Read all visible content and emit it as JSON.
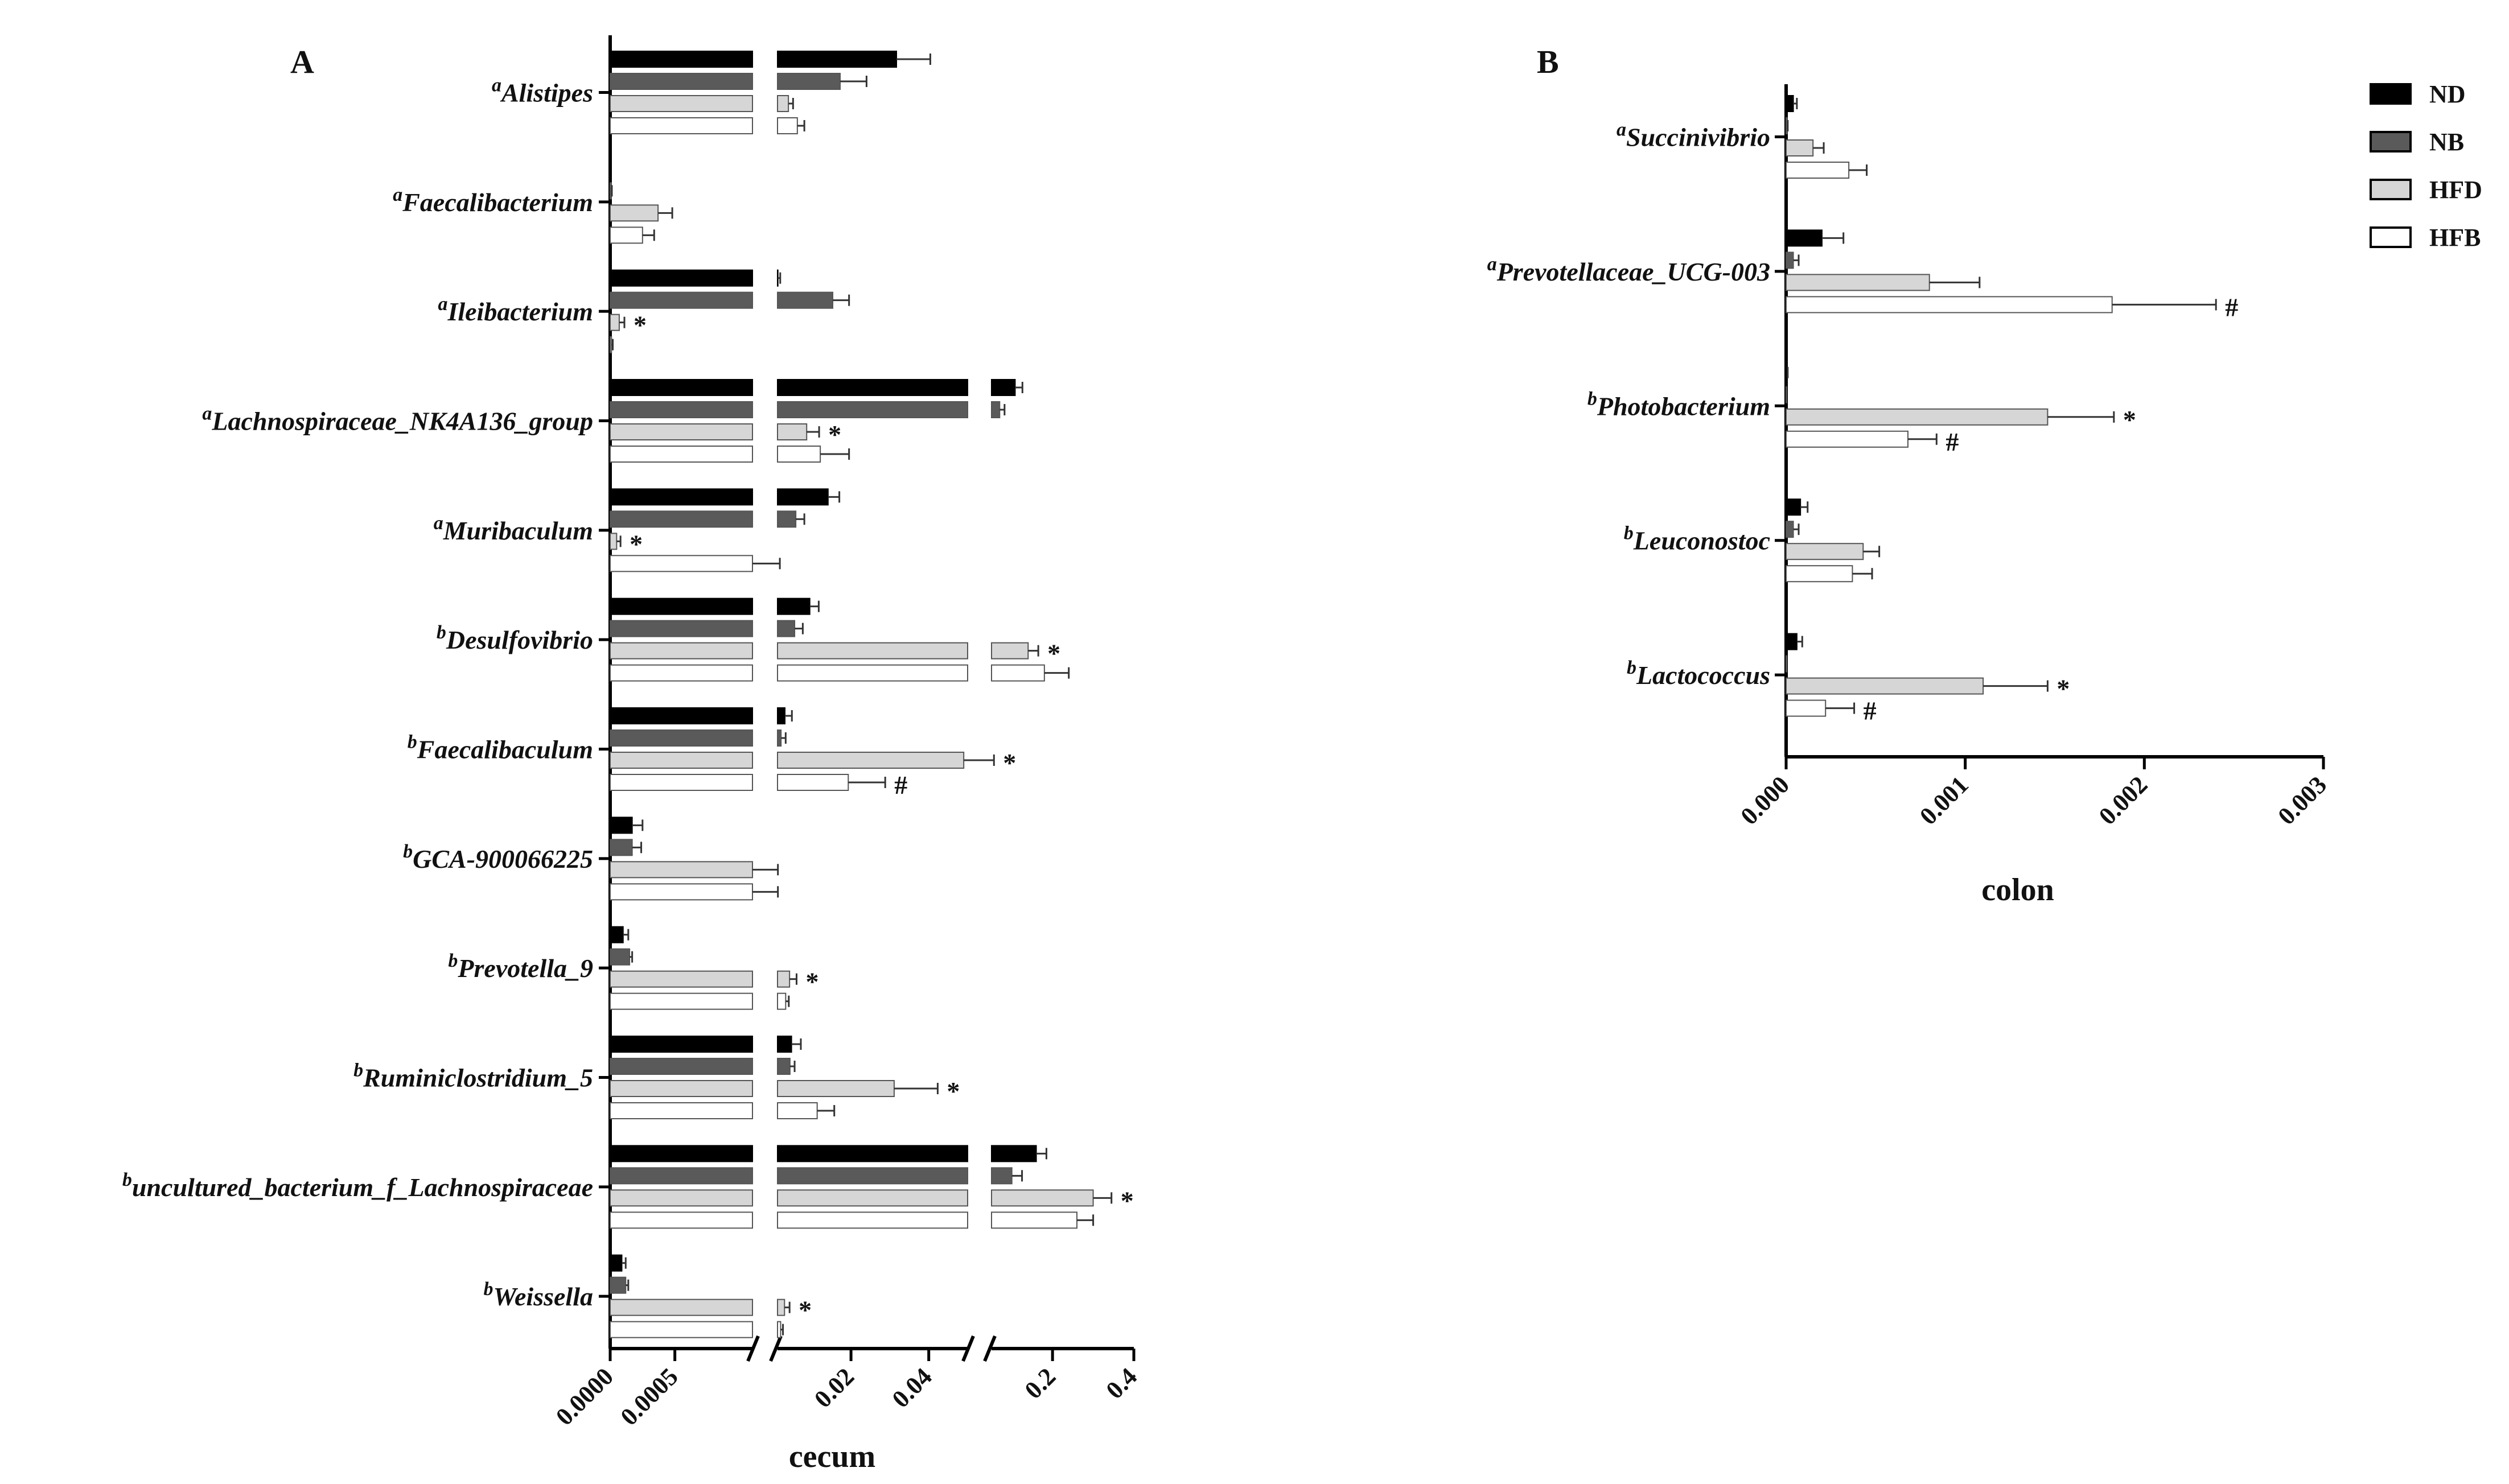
{
  "legend": [
    {
      "key": "ND",
      "label": "ND",
      "fill": "#000000"
    },
    {
      "key": "NB",
      "label": "NB",
      "fill": "#5a5a5a"
    },
    {
      "key": "HFD",
      "label": "HFD",
      "fill": "#d6d6d6"
    },
    {
      "key": "HFB",
      "label": "HFB",
      "fill": "#ffffff"
    }
  ],
  "chart_data": [
    {
      "panel": "A",
      "type": "bar",
      "orientation": "horizontal",
      "xlabel": "cecum",
      "x_axis_segments": [
        {
          "range": [
            0,
            0.0011
          ],
          "ticks": [
            {
              "value": 0,
              "label": "0.0000"
            },
            {
              "value": 0.0005,
              "label": "0.0005"
            }
          ]
        },
        {
          "range": [
            0.0011,
            0.05
          ],
          "ticks": [
            {
              "value": 0.02,
              "label": "0.02"
            },
            {
              "value": 0.04,
              "label": "0.04"
            }
          ]
        },
        {
          "range": [
            0.05,
            0.4
          ],
          "ticks": [
            {
              "value": 0.2,
              "label": "0.2"
            },
            {
              "value": 0.4,
              "label": "0.4"
            }
          ]
        }
      ],
      "series_names": [
        "ND",
        "NB",
        "HFD",
        "HFB"
      ],
      "categories": [
        {
          "prefix": "a",
          "name": "Alistipes",
          "values": [
            0.0317,
            0.0172,
            0.0039,
            0.0062
          ],
          "errors": [
            0.0087,
            0.0068,
            0.0012,
            0.0018
          ],
          "marks": [
            "",
            "",
            "",
            ""
          ]
        },
        {
          "prefix": "a",
          "name": "Faecalibacterium",
          "values": [
            5e-06,
            8e-06,
            0.00037,
            0.00025
          ],
          "errors": [
            4e-06,
            5e-06,
            0.00011,
            9e-05
          ],
          "marks": [
            "",
            "",
            "",
            ""
          ]
        },
        {
          "prefix": "a",
          "name": "Ileibacterium",
          "values": [
            0.0012,
            0.0153,
            7e-05,
            1e-05
          ],
          "errors": [
            0.0006,
            0.0042,
            4e-05,
            1e-05
          ],
          "marks": [
            "",
            "",
            "*",
            ""
          ]
        },
        {
          "prefix": "a",
          "name": "Lachnospiraceae_NK4A136_group",
          "values": [
            0.108,
            0.07,
            0.0086,
            0.0121
          ],
          "errors": [
            0.018,
            0.012,
            0.0032,
            0.0074
          ],
          "marks": [
            "",
            "",
            "*",
            ""
          ]
        },
        {
          "prefix": "a",
          "name": "Muribaculum",
          "values": [
            0.0141,
            0.0058,
            5e-05,
            0.0011
          ],
          "errors": [
            0.0029,
            0.0022,
            3e-05,
            0.0006
          ],
          "marks": [
            "",
            "",
            "*",
            ""
          ]
        },
        {
          "prefix": "b",
          "name": "Desulfovibrio",
          "values": [
            0.0094,
            0.0055,
            0.14,
            0.18
          ],
          "errors": [
            0.0023,
            0.0021,
            0.025,
            0.06
          ],
          "marks": [
            "",
            "",
            "*",
            ""
          ]
        },
        {
          "prefix": "b",
          "name": "Faecalibaculum",
          "values": [
            0.003,
            0.002,
            0.049,
            0.0193
          ],
          "errors": [
            0.0018,
            0.0012,
            0.007,
            0.0095
          ],
          "marks": [
            "",
            "",
            "*",
            "#"
          ]
        },
        {
          "prefix": "b",
          "name": "GCA-900066225",
          "values": [
            0.00017,
            0.00017,
            0.0011,
            0.0011
          ],
          "errors": [
            8e-05,
            7e-05,
            0.0001,
            0.0001
          ],
          "marks": [
            "",
            "",
            "",
            ""
          ]
        },
        {
          "prefix": "b",
          "name": "Prevotella_9",
          "values": [
            0.0001,
            0.00015,
            0.0042,
            0.0032
          ],
          "errors": [
            4e-05,
            2e-05,
            0.0018,
            0.0008
          ],
          "marks": [
            "",
            "",
            "*",
            ""
          ]
        },
        {
          "prefix": "b",
          "name": "Ruminiclostridium_5",
          "values": [
            0.0047,
            0.0043,
            0.0311,
            0.0113
          ],
          "errors": [
            0.0024,
            0.0012,
            0.0112,
            0.0044
          ],
          "marks": [
            "",
            "",
            "*",
            ""
          ]
        },
        {
          "prefix": "b",
          "name": "uncultured_bacterium_f_Lachnospiraceae",
          "values": [
            0.16,
            0.1,
            0.3,
            0.26
          ],
          "errors": [
            0.025,
            0.025,
            0.045,
            0.04
          ],
          "marks": [
            "",
            "",
            "*",
            ""
          ]
        },
        {
          "prefix": "b",
          "name": "Weissella",
          "values": [
            9e-05,
            0.00012,
            0.0029,
            0.0019
          ],
          "errors": [
            3e-05,
            2e-05,
            0.0013,
            0.0006
          ],
          "marks": [
            "",
            "",
            "*",
            ""
          ]
        }
      ]
    },
    {
      "panel": "B",
      "type": "bar",
      "orientation": "horizontal",
      "xlabel": "colon",
      "xlim": [
        0,
        0.003
      ],
      "ticks": [
        {
          "value": 0,
          "label": "0.000"
        },
        {
          "value": 0.001,
          "label": "0.001"
        },
        {
          "value": 0.002,
          "label": "0.002"
        },
        {
          "value": 0.003,
          "label": "0.003"
        }
      ],
      "series_names": [
        "ND",
        "NB",
        "HFD",
        "HFB"
      ],
      "categories": [
        {
          "prefix": "a",
          "name": "Succinivibrio",
          "values": [
            4e-05,
            5e-06,
            0.00015,
            0.00035
          ],
          "errors": [
            2e-05,
            4e-06,
            6e-05,
            0.0001
          ],
          "marks": [
            "",
            "",
            "",
            ""
          ]
        },
        {
          "prefix": "a",
          "name": "Prevotellaceae_UCG-003",
          "values": [
            0.0002,
            4e-05,
            0.0008,
            0.00182
          ],
          "errors": [
            0.00012,
            3e-05,
            0.00028,
            0.00058
          ],
          "marks": [
            "",
            "",
            "",
            "#"
          ]
        },
        {
          "prefix": "b",
          "name": "Photobacterium",
          "values": [
            5e-06,
            2e-06,
            0.00146,
            0.00068
          ],
          "errors": [
            4e-06,
            2e-06,
            0.00037,
            0.00016
          ],
          "marks": [
            "",
            "",
            "*",
            "#"
          ]
        },
        {
          "prefix": "b",
          "name": "Leuconostoc",
          "values": [
            8e-05,
            4e-05,
            0.00043,
            0.00037
          ],
          "errors": [
            4e-05,
            3e-05,
            9e-05,
            0.00011
          ],
          "marks": [
            "",
            "",
            "",
            ""
          ]
        },
        {
          "prefix": "b",
          "name": "Lactococcus",
          "values": [
            6e-05,
            3e-06,
            0.0011,
            0.00022
          ],
          "errors": [
            3e-05,
            3e-06,
            0.00036,
            0.00016
          ],
          "marks": [
            "",
            "",
            "*",
            "#"
          ]
        }
      ]
    }
  ]
}
